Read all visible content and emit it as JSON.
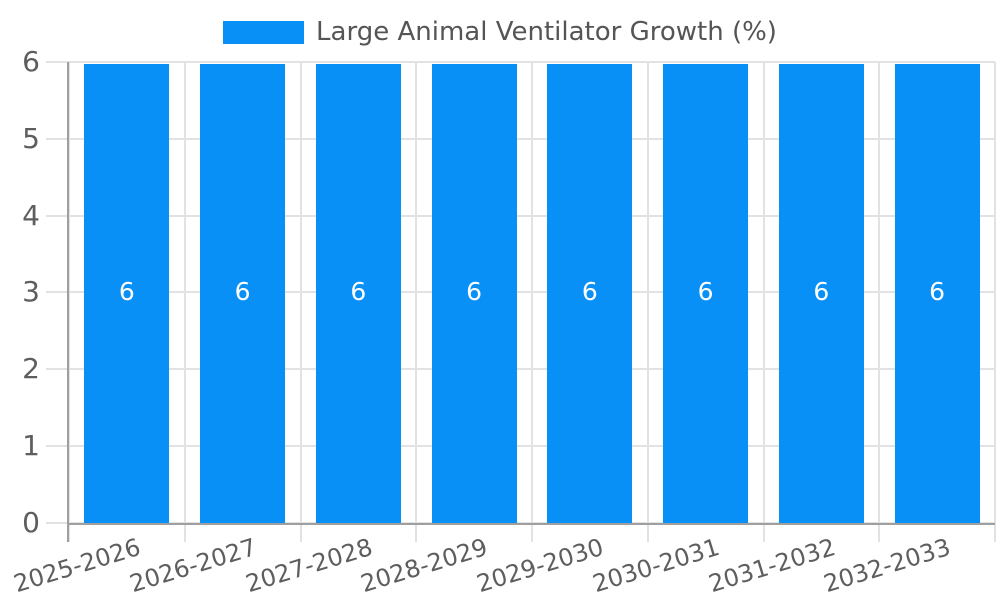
{
  "chart_data": {
    "type": "bar",
    "title": "",
    "categories": [
      "2025-2026",
      "2026-2027",
      "2027-2028",
      "2028-2029",
      "2029-2030",
      "2030-2031",
      "2031-2032",
      "2032-2033"
    ],
    "series": [
      {
        "name": "Large Animal Ventilator Growth (%)",
        "values": [
          6,
          6,
          6,
          6,
          6,
          6,
          6,
          6
        ]
      }
    ],
    "bar_labels": [
      "6",
      "6",
      "6",
      "6",
      "6",
      "6",
      "6",
      "6"
    ],
    "xlabel": "",
    "ylabel": "",
    "ylim": [
      0,
      6
    ],
    "yticks": [
      "0",
      "1",
      "2",
      "3",
      "4",
      "5",
      "6"
    ],
    "grid": "on",
    "legend_position": "top-center",
    "bar_label_position": "middle-of-bar",
    "colors": {
      "bar": "#0890f7",
      "bar_label": "#ffffff",
      "grid": "#e2e2e2",
      "axis": "#9f9f9f",
      "tick_text": "#5e5e5e",
      "legend_text": "#555555",
      "background": "#ffffff"
    }
  }
}
